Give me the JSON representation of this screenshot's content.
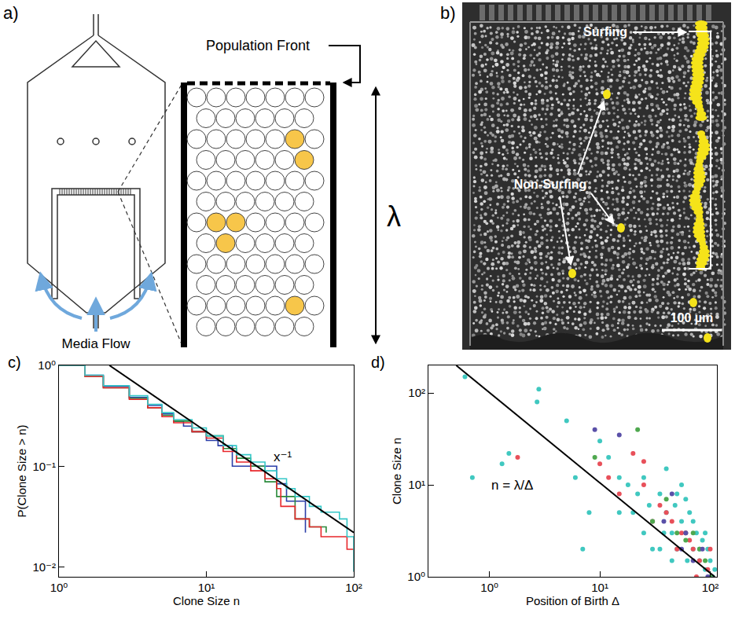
{
  "panel_a": {
    "panel": "a)",
    "population_front": "Population Front",
    "lambda": "λ",
    "media_flow": "Media Flow"
  },
  "panel_b": {
    "panel": "b)",
    "surfing": "Surfing",
    "non_surfing": "Non-Surfing",
    "scale_bar": "100 µm"
  },
  "chart_data": [
    {
      "panel": "c)",
      "type": "line",
      "x_label": "Clone Size n",
      "y_label": "P(Clone Size > n)",
      "log": true,
      "grid": false,
      "xlim": [
        1,
        100
      ],
      "ylim": [
        0.008,
        1
      ],
      "xticks": [
        {
          "value": 1,
          "label": "10⁰"
        },
        {
          "value": 10,
          "label": "10¹"
        },
        {
          "value": 100,
          "label": "10²"
        }
      ],
      "yticks": [
        {
          "value": 0.01,
          "label": "10⁻²"
        },
        {
          "value": 0.1,
          "label": "10⁻¹"
        },
        {
          "value": 1,
          "label": "10⁰"
        }
      ],
      "series": [
        {
          "color": "#2b3ea8",
          "line_style": "step",
          "x": [
            1,
            1.5,
            2,
            3,
            4,
            5,
            6,
            7,
            8,
            10,
            12,
            15,
            20,
            30,
            35,
            47
          ],
          "values": [
            1,
            0.8,
            0.62,
            0.48,
            0.4,
            0.33,
            0.28,
            0.25,
            0.22,
            0.18,
            0.16,
            0.1,
            0.1,
            0.067,
            0.045,
            0.022
          ]
        },
        {
          "color": "#2a8a3a",
          "line_style": "step",
          "x": [
            1,
            1.5,
            2,
            3,
            4,
            5,
            6,
            8,
            10,
            13,
            16,
            20,
            25,
            30,
            40,
            50,
            65
          ],
          "values": [
            1,
            0.78,
            0.6,
            0.47,
            0.38,
            0.32,
            0.28,
            0.22,
            0.2,
            0.15,
            0.12,
            0.1,
            0.07,
            0.05,
            0.03,
            0.025,
            0.022
          ]
        },
        {
          "color": "#e8262a",
          "line_style": "step",
          "x": [
            1,
            1.5,
            2,
            3,
            4,
            5,
            6,
            8,
            10,
            13,
            16,
            20,
            25,
            30,
            32,
            40,
            50,
            60,
            90,
            100
          ],
          "values": [
            1,
            0.78,
            0.6,
            0.46,
            0.38,
            0.31,
            0.27,
            0.22,
            0.19,
            0.14,
            0.11,
            0.09,
            0.075,
            0.06,
            0.04,
            0.03,
            0.025,
            0.02,
            0.015,
            0.009
          ]
        },
        {
          "color": "#35c8c8",
          "line_style": "step",
          "x": [
            1,
            1.5,
            2,
            3,
            4,
            5,
            6,
            8,
            10,
            13,
            16,
            20,
            25,
            30,
            35,
            40,
            50,
            60,
            80,
            90,
            100
          ],
          "values": [
            1,
            0.8,
            0.63,
            0.5,
            0.41,
            0.34,
            0.29,
            0.24,
            0.2,
            0.16,
            0.13,
            0.11,
            0.09,
            0.075,
            0.06,
            0.05,
            0.04,
            0.035,
            0.03,
            0.02,
            0.009
          ]
        },
        {
          "color": "#000000",
          "line_style": "solid",
          "x": [
            2.2,
            100
          ],
          "values": [
            1,
            0.022
          ]
        }
      ],
      "annotations": [
        {
          "text": "x⁻¹",
          "x": 28,
          "y": 0.1
        }
      ]
    },
    {
      "panel": "d)",
      "type": "scatter",
      "x_label": "Position of Birth Δ",
      "y_label": "Clone Size n",
      "log": true,
      "grid": false,
      "xlim": [
        0.28,
        115
      ],
      "ylim": [
        1,
        200
      ],
      "xticks": [
        {
          "value": 1,
          "label": "10⁰"
        },
        {
          "value": 10,
          "label": "10¹"
        },
        {
          "value": 100,
          "label": "10²"
        }
      ],
      "yticks": [
        {
          "value": 1,
          "label": "10⁰"
        },
        {
          "value": 10,
          "label": "10¹"
        },
        {
          "value": 100,
          "label": "10²"
        }
      ],
      "series": [
        {
          "color": "#40c8c0",
          "marker": "circle",
          "x": [
            0.6,
            0.7,
            1.3,
            1.5,
            2.7,
            2.8,
            5,
            6,
            7,
            8,
            10,
            12,
            15,
            15,
            18,
            20,
            22,
            25,
            25,
            28,
            30,
            30,
            35,
            35,
            38,
            40,
            40,
            45,
            45,
            48,
            50,
            50,
            55,
            55,
            60,
            60,
            62,
            65,
            70,
            70,
            75,
            80,
            80,
            85,
            90,
            90,
            95,
            100,
            105,
            110
          ],
          "values": [
            150,
            12,
            17,
            22,
            80,
            110,
            50,
            12,
            2,
            5,
            30,
            20,
            12,
            5,
            10,
            5,
            8,
            3,
            12,
            6,
            2,
            4,
            8,
            2,
            3,
            15,
            5,
            3,
            1.5,
            6,
            2,
            8,
            4,
            10,
            3,
            7,
            1.5,
            5,
            2,
            4,
            3,
            1.5,
            2,
            2.5,
            1.2,
            3,
            2,
            1.5,
            1,
            1.2
          ]
        },
        {
          "color": "#e8505a",
          "marker": "circle",
          "x": [
            1.8,
            10,
            12,
            15,
            20,
            25,
            25,
            30,
            35,
            40,
            45,
            50,
            55,
            60,
            65,
            70,
            75,
            80,
            95,
            100
          ],
          "values": [
            20,
            17,
            12,
            8,
            22,
            10,
            18,
            4,
            6,
            5,
            4,
            2,
            3,
            3,
            2.5,
            2,
            1,
            1.5,
            1.2,
            2
          ]
        },
        {
          "color": "#4fa84f",
          "marker": "circle",
          "x": [
            9,
            22,
            30,
            40,
            50,
            60,
            70,
            80,
            90,
            100
          ],
          "values": [
            20,
            40,
            4,
            7,
            3,
            2.5,
            3,
            2,
            1.5,
            1
          ]
        },
        {
          "color": "#5a50a8",
          "marker": "circle",
          "x": [
            9,
            15,
            38,
            45,
            55,
            60,
            70,
            85,
            95
          ],
          "values": [
            40,
            35,
            4,
            8,
            2,
            3,
            1.5,
            2,
            1
          ]
        },
        {
          "type": "line",
          "color": "#000000",
          "line_style": "solid",
          "x": [
            0.5,
            110
          ],
          "values": [
            200,
            1
          ]
        }
      ],
      "annotations": [
        {
          "text": "n = λ/Δ",
          "x": 1,
          "y": 10
        }
      ]
    }
  ]
}
